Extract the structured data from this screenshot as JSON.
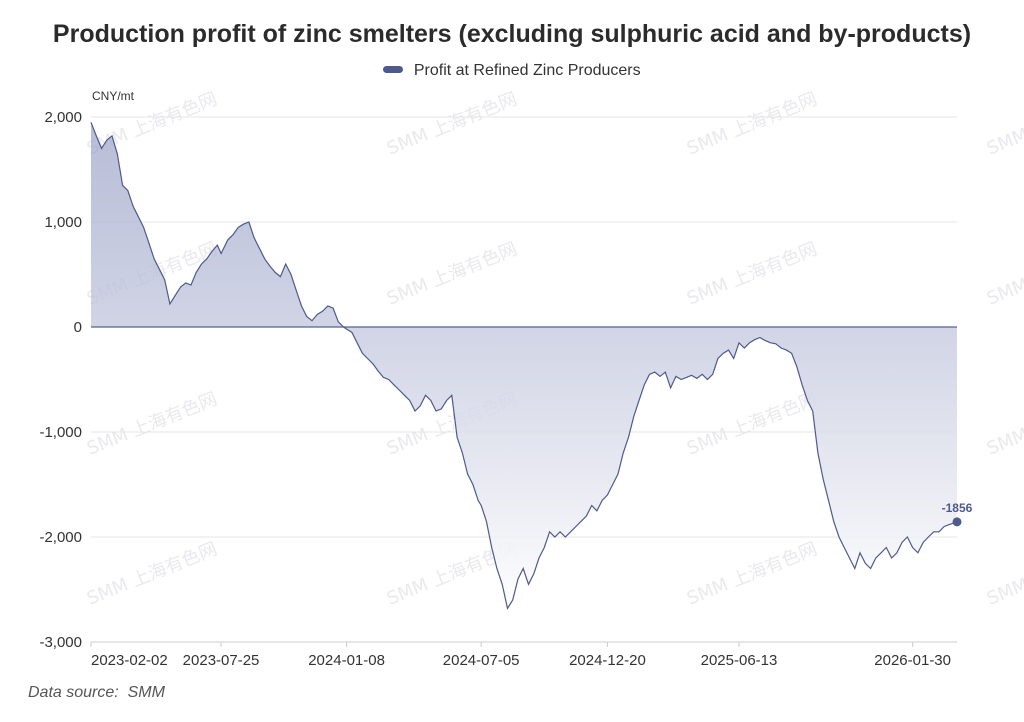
{
  "source_label": "Data source:",
  "source_name": "SMM",
  "watermark_text": "SMM 上海有色网",
  "colors": {
    "line": "#4e5a8c",
    "fill_top": "#9aa1c6",
    "fill_bottom": "#ffffff",
    "grid": "#e6e6e6",
    "zero_line": "#5a6191"
  },
  "chart_data": {
    "type": "area",
    "title": "Production profit of zinc smelters (excluding sulphuric acid and by-products)",
    "ylabel": "CNY/mt",
    "xlabel": "",
    "ylim": [
      -3000,
      2000
    ],
    "yticks": [
      2000,
      1000,
      0,
      -1000,
      -2000,
      -3000
    ],
    "ytick_labels": [
      "2,000",
      "1,000",
      "0",
      "-1,000",
      "-2,000",
      "-3,000"
    ],
    "x_range": [
      "2023-02-02",
      "2026-03-30"
    ],
    "xticks": [
      "2023-02-02",
      "2023-07-25",
      "2024-01-08",
      "2024-07-05",
      "2024-12-20",
      "2025-06-13",
      "2026-01-30"
    ],
    "grid": true,
    "legend_position": "top-center",
    "series": [
      {
        "name": "Profit at Refined Zinc Producers",
        "last_value_label": "-1856",
        "points": [
          [
            "2023-02-02",
            1950
          ],
          [
            "2023-02-09",
            1820
          ],
          [
            "2023-02-16",
            1700
          ],
          [
            "2023-02-23",
            1780
          ],
          [
            "2023-03-02",
            1820
          ],
          [
            "2023-03-09",
            1650
          ],
          [
            "2023-03-16",
            1350
          ],
          [
            "2023-03-23",
            1300
          ],
          [
            "2023-03-30",
            1150
          ],
          [
            "2023-04-06",
            1050
          ],
          [
            "2023-04-13",
            950
          ],
          [
            "2023-04-20",
            800
          ],
          [
            "2023-04-27",
            650
          ],
          [
            "2023-05-04",
            550
          ],
          [
            "2023-05-11",
            450
          ],
          [
            "2023-05-18",
            220
          ],
          [
            "2023-05-25",
            300
          ],
          [
            "2023-06-01",
            380
          ],
          [
            "2023-06-08",
            420
          ],
          [
            "2023-06-15",
            400
          ],
          [
            "2023-06-22",
            520
          ],
          [
            "2023-06-29",
            600
          ],
          [
            "2023-07-06",
            650
          ],
          [
            "2023-07-13",
            720
          ],
          [
            "2023-07-20",
            780
          ],
          [
            "2023-07-25",
            700
          ],
          [
            "2023-08-03",
            830
          ],
          [
            "2023-08-10",
            880
          ],
          [
            "2023-08-17",
            950
          ],
          [
            "2023-08-24",
            980
          ],
          [
            "2023-08-31",
            1000
          ],
          [
            "2023-09-07",
            850
          ],
          [
            "2023-09-14",
            750
          ],
          [
            "2023-09-21",
            650
          ],
          [
            "2023-09-28",
            580
          ],
          [
            "2023-10-05",
            520
          ],
          [
            "2023-10-12",
            480
          ],
          [
            "2023-10-19",
            600
          ],
          [
            "2023-10-26",
            500
          ],
          [
            "2023-11-02",
            350
          ],
          [
            "2023-11-09",
            200
          ],
          [
            "2023-11-16",
            100
          ],
          [
            "2023-11-23",
            60
          ],
          [
            "2023-11-30",
            120
          ],
          [
            "2023-12-07",
            150
          ],
          [
            "2023-12-14",
            200
          ],
          [
            "2023-12-21",
            180
          ],
          [
            "2023-12-28",
            50
          ],
          [
            "2024-01-04",
            0
          ],
          [
            "2024-01-08",
            -20
          ],
          [
            "2024-01-15",
            -50
          ],
          [
            "2024-01-22",
            -150
          ],
          [
            "2024-01-29",
            -250
          ],
          [
            "2024-02-05",
            -300
          ],
          [
            "2024-02-12",
            -350
          ],
          [
            "2024-02-19",
            -420
          ],
          [
            "2024-02-26",
            -480
          ],
          [
            "2024-03-04",
            -500
          ],
          [
            "2024-03-11",
            -550
          ],
          [
            "2024-03-18",
            -600
          ],
          [
            "2024-03-25",
            -650
          ],
          [
            "2024-04-01",
            -700
          ],
          [
            "2024-04-08",
            -800
          ],
          [
            "2024-04-15",
            -750
          ],
          [
            "2024-04-22",
            -650
          ],
          [
            "2024-04-29",
            -700
          ],
          [
            "2024-05-06",
            -800
          ],
          [
            "2024-05-13",
            -780
          ],
          [
            "2024-05-20",
            -700
          ],
          [
            "2024-05-27",
            -650
          ],
          [
            "2024-06-03",
            -1050
          ],
          [
            "2024-06-10",
            -1200
          ],
          [
            "2024-06-17",
            -1400
          ],
          [
            "2024-06-24",
            -1500
          ],
          [
            "2024-07-01",
            -1650
          ],
          [
            "2024-07-05",
            -1700
          ],
          [
            "2024-07-12",
            -1850
          ],
          [
            "2024-07-19",
            -2100
          ],
          [
            "2024-07-26",
            -2300
          ],
          [
            "2024-08-02",
            -2450
          ],
          [
            "2024-08-09",
            -2680
          ],
          [
            "2024-08-16",
            -2600
          ],
          [
            "2024-08-23",
            -2400
          ],
          [
            "2024-08-30",
            -2300
          ],
          [
            "2024-09-06",
            -2450
          ],
          [
            "2024-09-13",
            -2350
          ],
          [
            "2024-09-20",
            -2200
          ],
          [
            "2024-09-27",
            -2100
          ],
          [
            "2024-10-04",
            -1950
          ],
          [
            "2024-10-11",
            -2000
          ],
          [
            "2024-10-18",
            -1950
          ],
          [
            "2024-10-25",
            -2000
          ],
          [
            "2024-11-01",
            -1950
          ],
          [
            "2024-11-08",
            -1900
          ],
          [
            "2024-11-15",
            -1850
          ],
          [
            "2024-11-22",
            -1800
          ],
          [
            "2024-11-29",
            -1700
          ],
          [
            "2024-12-06",
            -1750
          ],
          [
            "2024-12-13",
            -1650
          ],
          [
            "2024-12-20",
            -1600
          ],
          [
            "2024-12-27",
            -1500
          ],
          [
            "2025-01-03",
            -1400
          ],
          [
            "2025-01-10",
            -1200
          ],
          [
            "2025-01-17",
            -1050
          ],
          [
            "2025-01-24",
            -850
          ],
          [
            "2025-01-31",
            -700
          ],
          [
            "2025-02-07",
            -550
          ],
          [
            "2025-02-14",
            -450
          ],
          [
            "2025-02-21",
            -430
          ],
          [
            "2025-02-28",
            -470
          ],
          [
            "2025-03-07",
            -430
          ],
          [
            "2025-03-14",
            -580
          ],
          [
            "2025-03-21",
            -470
          ],
          [
            "2025-03-28",
            -500
          ],
          [
            "2025-04-04",
            -480
          ],
          [
            "2025-04-11",
            -460
          ],
          [
            "2025-04-18",
            -490
          ],
          [
            "2025-04-25",
            -450
          ],
          [
            "2025-05-02",
            -500
          ],
          [
            "2025-05-09",
            -450
          ],
          [
            "2025-05-16",
            -300
          ],
          [
            "2025-05-23",
            -250
          ],
          [
            "2025-05-30",
            -220
          ],
          [
            "2025-06-06",
            -300
          ],
          [
            "2025-06-13",
            -150
          ],
          [
            "2025-06-20",
            -200
          ],
          [
            "2025-06-27",
            -150
          ],
          [
            "2025-07-04",
            -120
          ],
          [
            "2025-07-11",
            -100
          ],
          [
            "2025-07-18",
            -130
          ],
          [
            "2025-07-25",
            -150
          ],
          [
            "2025-08-01",
            -160
          ],
          [
            "2025-08-08",
            -200
          ],
          [
            "2025-08-15",
            -220
          ],
          [
            "2025-08-22",
            -250
          ],
          [
            "2025-08-29",
            -380
          ],
          [
            "2025-09-05",
            -550
          ],
          [
            "2025-09-12",
            -700
          ],
          [
            "2025-09-19",
            -800
          ],
          [
            "2025-09-26",
            -1200
          ],
          [
            "2025-10-03",
            -1450
          ],
          [
            "2025-10-10",
            -1650
          ],
          [
            "2025-10-17",
            -1850
          ],
          [
            "2025-10-24",
            -2000
          ],
          [
            "2025-10-31",
            -2100
          ],
          [
            "2025-11-07",
            -2200
          ],
          [
            "2025-11-14",
            -2300
          ],
          [
            "2025-11-21",
            -2150
          ],
          [
            "2025-11-28",
            -2250
          ],
          [
            "2025-12-05",
            -2300
          ],
          [
            "2025-12-12",
            -2200
          ],
          [
            "2025-12-19",
            -2150
          ],
          [
            "2025-12-26",
            -2100
          ],
          [
            "2026-01-02",
            -2200
          ],
          [
            "2026-01-09",
            -2150
          ],
          [
            "2026-01-16",
            -2050
          ],
          [
            "2026-01-23",
            -2000
          ],
          [
            "2026-01-30",
            -2100
          ],
          [
            "2026-02-06",
            -2150
          ],
          [
            "2026-02-13",
            -2050
          ],
          [
            "2026-02-20",
            -2000
          ],
          [
            "2026-02-27",
            -1950
          ],
          [
            "2026-03-06",
            -1950
          ],
          [
            "2026-03-13",
            -1900
          ],
          [
            "2026-03-20",
            -1880
          ],
          [
            "2026-03-30",
            -1856
          ]
        ]
      }
    ]
  }
}
